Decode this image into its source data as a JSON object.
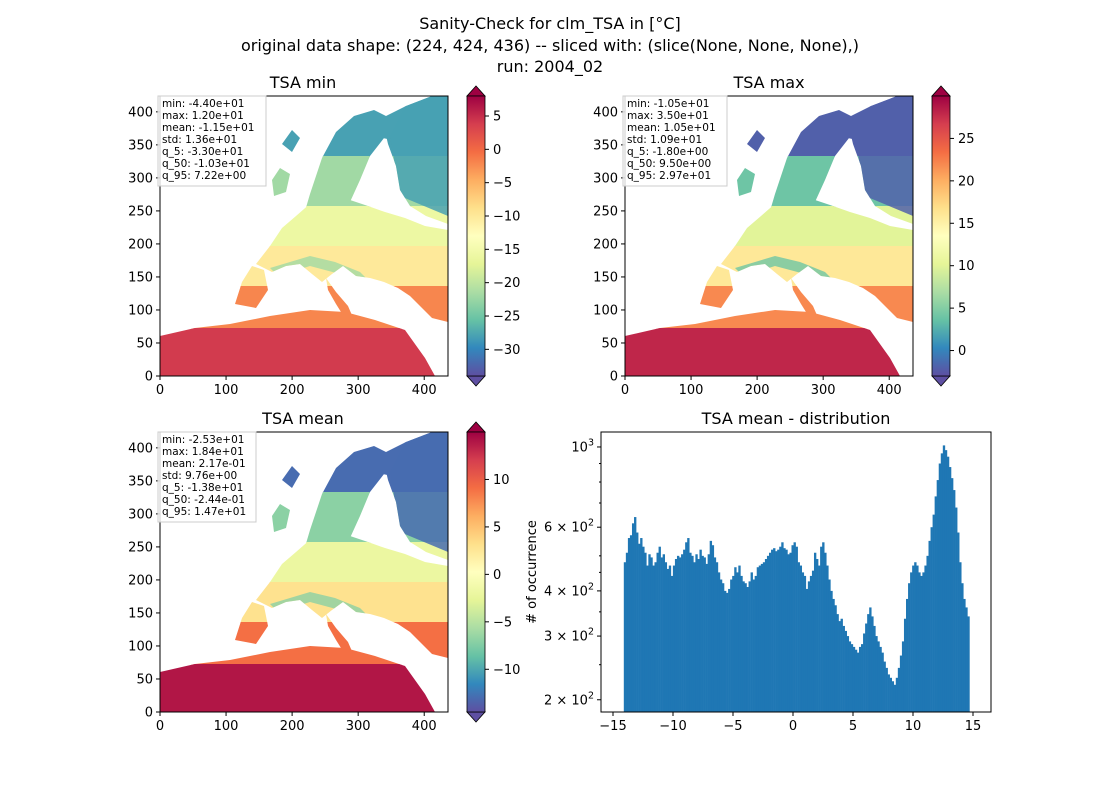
{
  "figure": {
    "suptitle_lines": [
      "Sanity-Check for clm_TSA in [°C]",
      "original data shape: (224, 424, 436) -- sliced with: (slice(None, None, None),)",
      "run: 2004_02"
    ]
  },
  "panels": {
    "min": {
      "title": "TSA min",
      "stats": [
        "min: -4.40e+01",
        "max: 1.20e+01",
        "mean: -1.15e+01",
        "std: 1.36e+01",
        "q_5: -3.30e+01",
        "q_50: -1.03e+01",
        "q_95: 7.22e+00"
      ],
      "colorbar": {
        "range": [
          -34,
          8
        ],
        "ticks": [
          "5",
          "0",
          "−5",
          "−10",
          "−15",
          "−20",
          "−25",
          "−30"
        ],
        "tick_values": [
          5,
          0,
          -5,
          -10,
          -15,
          -20,
          -25,
          -30
        ]
      }
    },
    "max": {
      "title": "TSA max",
      "stats": [
        "min: -1.05e+01",
        "max: 3.50e+01",
        "mean: 1.05e+01",
        "std: 1.09e+01",
        "q_5: -1.80e+00",
        "q_50: 9.50e+00",
        "q_95: 2.97e+01"
      ],
      "colorbar": {
        "range": [
          -3,
          30
        ],
        "ticks": [
          "25",
          "20",
          "15",
          "10",
          "5",
          "0"
        ],
        "tick_values": [
          25,
          20,
          15,
          10,
          5,
          0
        ]
      }
    },
    "mean": {
      "title": "TSA mean",
      "stats": [
        "min: -2.53e+01",
        "max: 1.84e+01",
        "mean: 2.17e-01",
        "std: 9.76e+00",
        "q_5: -1.38e+01",
        "q_50: -2.44e-01",
        "q_95: 1.47e+01"
      ],
      "colorbar": {
        "range": [
          -14.5,
          15
        ],
        "ticks": [
          "10",
          "5",
          "0",
          "−5",
          "−10"
        ],
        "tick_values": [
          10,
          5,
          0,
          -5,
          -10
        ]
      }
    },
    "map_axes": {
      "xticks": [
        "0",
        "100",
        "200",
        "300",
        "400"
      ],
      "xtick_values": [
        0,
        100,
        200,
        300,
        400
      ],
      "yticks": [
        "0",
        "50",
        "100",
        "150",
        "200",
        "250",
        "300",
        "350",
        "400"
      ],
      "ytick_values": [
        0,
        50,
        100,
        150,
        200,
        250,
        300,
        350,
        400
      ],
      "xlim": [
        0,
        436
      ],
      "ylim": [
        0,
        424
      ]
    },
    "hist": {
      "title": "TSA mean - distribution",
      "ylabel": "# of occurrence"
    }
  },
  "colors": {
    "spectral_r": [
      "#5e4fa2",
      "#3288bd",
      "#66c2a5",
      "#abdda4",
      "#e6f598",
      "#ffffbf",
      "#fee08b",
      "#fdae61",
      "#f46d43",
      "#d53e4f",
      "#9e0142"
    ],
    "bar": "#1f77b4"
  },
  "chart_data": {
    "type": "bar",
    "title": "TSA mean - distribution",
    "xlabel": "",
    "ylabel": "# of occurrence",
    "xlim": [
      -16,
      16.5
    ],
    "ylim": [
      185,
      1100
    ],
    "yscale": "log",
    "xticks": [
      "−15",
      "−10",
      "−5",
      "0",
      "5",
      "10",
      "15"
    ],
    "xtick_values": [
      -15,
      -10,
      -5,
      0,
      5,
      10,
      15
    ],
    "yticks": [
      "2 × 10^2",
      "3 × 10^2",
      "4 × 10^2",
      "6 × 10^2",
      "10^3"
    ],
    "ytick_values": [
      200,
      300,
      400,
      600,
      1000
    ],
    "bin_range": [
      -14.1,
      14.7
    ],
    "values": [
      480,
      510,
      560,
      570,
      615,
      640,
      580,
      540,
      560,
      530,
      510,
      470,
      505,
      495,
      470,
      480,
      510,
      530,
      495,
      505,
      480,
      460,
      470,
      440,
      470,
      490,
      500,
      495,
      505,
      520,
      545,
      560,
      510,
      500,
      480,
      505,
      490,
      520,
      500,
      495,
      475,
      505,
      550,
      535,
      495,
      480,
      450,
      430,
      420,
      400,
      395,
      405,
      430,
      440,
      465,
      450,
      470,
      440,
      425,
      420,
      410,
      425,
      450,
      430,
      440,
      465,
      470,
      475,
      480,
      490,
      500,
      510,
      520,
      525,
      515,
      520,
      530,
      545,
      525,
      520,
      505,
      510,
      535,
      545,
      530,
      480,
      470,
      450,
      440,
      405,
      425,
      440,
      455,
      510,
      490,
      470,
      530,
      545,
      510,
      470,
      430,
      400,
      380,
      365,
      345,
      330,
      335,
      320,
      310,
      300,
      290,
      285,
      280,
      275,
      270,
      280,
      285,
      305,
      325,
      345,
      360,
      340,
      320,
      300,
      290,
      280,
      270,
      255,
      245,
      235,
      230,
      225,
      220,
      230,
      245,
      265,
      290,
      335,
      380,
      420,
      450,
      470,
      480,
      470,
      450,
      440,
      450,
      470,
      500,
      550,
      600,
      650,
      730,
      810,
      900,
      960,
      1010,
      980,
      940,
      880,
      820,
      760,
      680,
      580,
      480,
      420,
      380,
      360,
      340
    ]
  }
}
